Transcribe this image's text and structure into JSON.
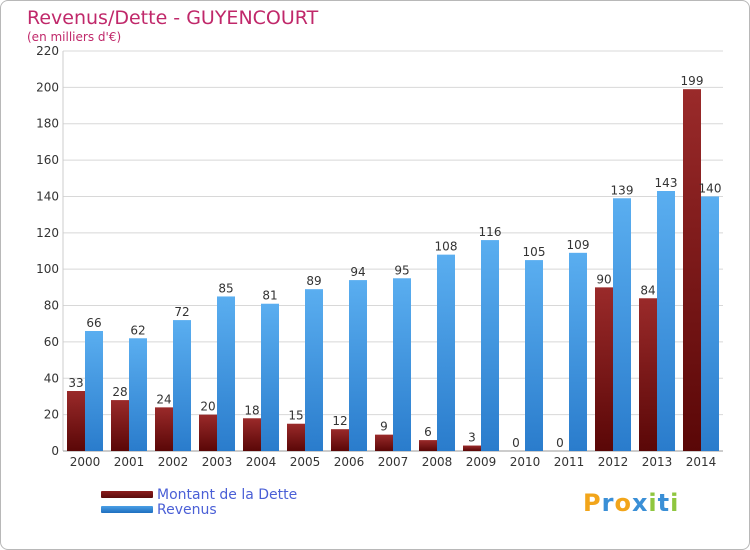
{
  "header": {
    "title": "Revenus/Dette - GUYENCOURT",
    "subtitle": "(en milliers d'€)"
  },
  "colors": {
    "debt": "#8b1c1c",
    "debt_dark": "#5a0b0b",
    "revenue": "#4a9fe6",
    "revenue_dark": "#1f6fbf",
    "grid": "#d8d8d8",
    "axis_text": "#333333"
  },
  "legend": {
    "debt_label": "Montant de la Dette",
    "revenue_label": "Revenus"
  },
  "logo": {
    "text": "Proxiti",
    "letter_colors": [
      "#f2a51a",
      "#3a8fd6",
      "#f2a51a",
      "#3a8fd6",
      "#8fc63f",
      "#3a8fd6",
      "#8fc63f"
    ]
  },
  "chart_data": {
    "type": "bar",
    "categories": [
      "2000",
      "2001",
      "2002",
      "2003",
      "2004",
      "2005",
      "2006",
      "2007",
      "2008",
      "2009",
      "2010",
      "2011",
      "2012",
      "2013",
      "2014"
    ],
    "series": [
      {
        "name": "Montant de la Dette",
        "values": [
          33,
          28,
          24,
          20,
          18,
          15,
          12,
          9,
          6,
          3,
          0,
          0,
          90,
          84,
          199
        ]
      },
      {
        "name": "Revenus",
        "values": [
          66,
          62,
          72,
          85,
          81,
          89,
          94,
          95,
          108,
          116,
          105,
          109,
          139,
          143,
          140
        ]
      }
    ],
    "title": "Revenus/Dette - GUYENCOURT",
    "ylabel": "(en milliers d'€)",
    "ylim": [
      0,
      220
    ],
    "yticks": [
      0,
      20,
      40,
      60,
      80,
      100,
      120,
      140,
      160,
      180,
      200,
      220
    ],
    "grid": true,
    "legend": "bottom-left"
  }
}
